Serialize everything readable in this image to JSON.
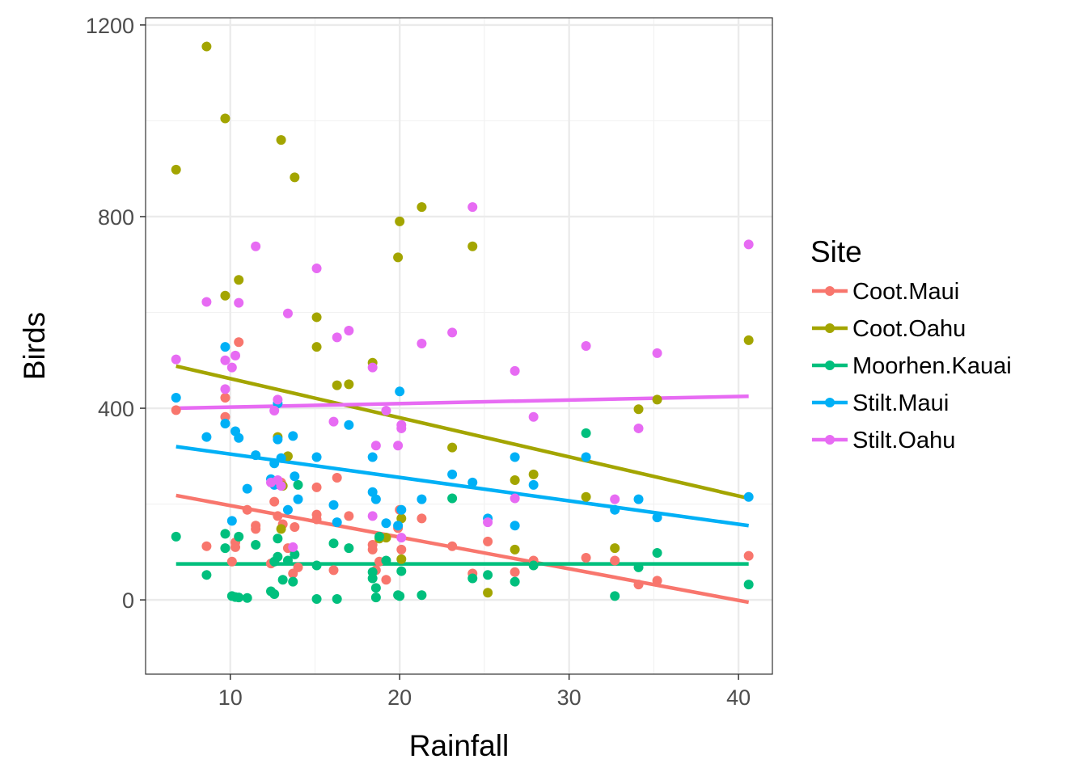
{
  "chart_data": {
    "type": "scatter",
    "xlabel": "Rainfall",
    "ylabel": "Birds",
    "xlim": [
      5.0,
      42.0
    ],
    "ylim": [
      -155,
      1215
    ],
    "x_ticks": [
      10,
      20,
      30,
      40
    ],
    "y_ticks": [
      0,
      400,
      800,
      1200
    ],
    "x_tick_labels": [
      "10",
      "20",
      "30",
      "40"
    ],
    "y_tick_labels": [
      "0",
      "400",
      "800",
      "1200"
    ],
    "grid": true,
    "legend": {
      "title": "Site",
      "position": "right"
    },
    "series": [
      {
        "name": "Coot.Maui",
        "color": "#F8766D",
        "trend": [
          [
            6.8,
            218
          ],
          [
            40.6,
            -5
          ]
        ],
        "points": [
          [
            6.8,
            396
          ],
          [
            8.6,
            112
          ],
          [
            9.7,
            382
          ],
          [
            9.7,
            422
          ],
          [
            10.1,
            80
          ],
          [
            10.3,
            110
          ],
          [
            10.3,
            120
          ],
          [
            10.5,
            538
          ],
          [
            11.0,
            188
          ],
          [
            11.5,
            148
          ],
          [
            11.5,
            155
          ],
          [
            12.4,
            76
          ],
          [
            12.6,
            205
          ],
          [
            12.8,
            175
          ],
          [
            13.0,
            245
          ],
          [
            13.1,
            158
          ],
          [
            13.4,
            108
          ],
          [
            13.7,
            55
          ],
          [
            13.8,
            152
          ],
          [
            14.0,
            68
          ],
          [
            15.1,
            235
          ],
          [
            15.1,
            178
          ],
          [
            15.1,
            168
          ],
          [
            16.1,
            62
          ],
          [
            16.3,
            255
          ],
          [
            17.0,
            175
          ],
          [
            18.4,
            105
          ],
          [
            18.4,
            115
          ],
          [
            18.6,
            62
          ],
          [
            18.8,
            80
          ],
          [
            19.2,
            42
          ],
          [
            19.9,
            150
          ],
          [
            20.0,
            188
          ],
          [
            20.1,
            105
          ],
          [
            21.3,
            170
          ],
          [
            23.1,
            112
          ],
          [
            24.3,
            55
          ],
          [
            25.2,
            122
          ],
          [
            26.8,
            58
          ],
          [
            27.9,
            82
          ],
          [
            31.0,
            88
          ],
          [
            32.7,
            82
          ],
          [
            34.1,
            32
          ],
          [
            35.2,
            40
          ],
          [
            40.6,
            92
          ]
        ]
      },
      {
        "name": "Coot.Oahu",
        "color": "#A3A500",
        "trend": [
          [
            6.8,
            488
          ],
          [
            40.6,
            212
          ]
        ],
        "points": [
          [
            6.8,
            898
          ],
          [
            8.6,
            1155
          ],
          [
            9.7,
            1005
          ],
          [
            9.7,
            635
          ],
          [
            10.5,
            668
          ],
          [
            13.0,
            960
          ],
          [
            13.8,
            882
          ],
          [
            12.8,
            340
          ],
          [
            13.1,
            238
          ],
          [
            13.4,
            300
          ],
          [
            13.0,
            148
          ],
          [
            15.1,
            590
          ],
          [
            15.1,
            528
          ],
          [
            16.3,
            448
          ],
          [
            17.0,
            450
          ],
          [
            18.4,
            495
          ],
          [
            18.8,
            128
          ],
          [
            19.2,
            130
          ],
          [
            19.9,
            715
          ],
          [
            20.0,
            790
          ],
          [
            20.1,
            170
          ],
          [
            20.1,
            85
          ],
          [
            21.3,
            820
          ],
          [
            23.1,
            318
          ],
          [
            24.3,
            738
          ],
          [
            25.2,
            15
          ],
          [
            26.8,
            250
          ],
          [
            26.8,
            105
          ],
          [
            27.9,
            262
          ],
          [
            31.0,
            215
          ],
          [
            32.7,
            108
          ],
          [
            34.1,
            398
          ],
          [
            35.2,
            418
          ],
          [
            40.6,
            542
          ]
        ]
      },
      {
        "name": "Moorhen.Kauai",
        "color": "#00BF7D",
        "trend": [
          [
            6.8,
            75
          ],
          [
            40.6,
            75
          ]
        ],
        "points": [
          [
            6.8,
            132
          ],
          [
            8.6,
            52
          ],
          [
            9.7,
            108
          ],
          [
            9.7,
            138
          ],
          [
            10.1,
            8
          ],
          [
            10.3,
            6
          ],
          [
            10.5,
            5
          ],
          [
            10.5,
            132
          ],
          [
            11.0,
            4
          ],
          [
            11.5,
            115
          ],
          [
            12.4,
            18
          ],
          [
            12.6,
            12
          ],
          [
            12.6,
            80
          ],
          [
            12.8,
            90
          ],
          [
            12.8,
            128
          ],
          [
            13.1,
            42
          ],
          [
            13.4,
            82
          ],
          [
            13.7,
            38
          ],
          [
            13.8,
            95
          ],
          [
            14.0,
            240
          ],
          [
            15.1,
            72
          ],
          [
            15.1,
            2
          ],
          [
            16.1,
            118
          ],
          [
            16.3,
            2
          ],
          [
            17.0,
            108
          ],
          [
            18.4,
            45
          ],
          [
            18.4,
            58
          ],
          [
            18.6,
            25
          ],
          [
            18.6,
            5
          ],
          [
            18.8,
            132
          ],
          [
            19.2,
            82
          ],
          [
            19.9,
            10
          ],
          [
            20.0,
            8
          ],
          [
            20.1,
            60
          ],
          [
            21.3,
            10
          ],
          [
            23.1,
            212
          ],
          [
            24.3,
            45
          ],
          [
            25.2,
            52
          ],
          [
            26.8,
            38
          ],
          [
            27.9,
            72
          ],
          [
            31.0,
            348
          ],
          [
            32.7,
            8
          ],
          [
            34.1,
            68
          ],
          [
            35.2,
            98
          ],
          [
            40.6,
            32
          ]
        ]
      },
      {
        "name": "Stilt.Maui",
        "color": "#00B0F6",
        "trend": [
          [
            6.8,
            320
          ],
          [
            40.6,
            155
          ]
        ],
        "points": [
          [
            6.8,
            422
          ],
          [
            8.6,
            340
          ],
          [
            9.7,
            528
          ],
          [
            9.7,
            368
          ],
          [
            10.1,
            165
          ],
          [
            10.3,
            352
          ],
          [
            10.5,
            338
          ],
          [
            11.0,
            232
          ],
          [
            11.5,
            302
          ],
          [
            12.4,
            252
          ],
          [
            12.6,
            285
          ],
          [
            12.6,
            240
          ],
          [
            12.8,
            410
          ],
          [
            12.8,
            335
          ],
          [
            13.0,
            296
          ],
          [
            13.4,
            188
          ],
          [
            13.7,
            342
          ],
          [
            13.8,
            258
          ],
          [
            14.0,
            210
          ],
          [
            15.1,
            298
          ],
          [
            16.1,
            198
          ],
          [
            16.3,
            162
          ],
          [
            17.0,
            365
          ],
          [
            18.4,
            298
          ],
          [
            18.4,
            225
          ],
          [
            18.6,
            210
          ],
          [
            19.2,
            160
          ],
          [
            19.9,
            155
          ],
          [
            20.0,
            435
          ],
          [
            20.1,
            188
          ],
          [
            21.3,
            210
          ],
          [
            23.1,
            262
          ],
          [
            24.3,
            245
          ],
          [
            25.2,
            170
          ],
          [
            26.8,
            298
          ],
          [
            26.8,
            155
          ],
          [
            27.9,
            240
          ],
          [
            31.0,
            298
          ],
          [
            32.7,
            188
          ],
          [
            34.1,
            210
          ],
          [
            35.2,
            172
          ],
          [
            40.6,
            215
          ]
        ]
      },
      {
        "name": "Stilt.Oahu",
        "color": "#E76BF3",
        "trend": [
          [
            6.8,
            400
          ],
          [
            40.6,
            425
          ]
        ],
        "points": [
          [
            6.8,
            502
          ],
          [
            8.6,
            622
          ],
          [
            9.7,
            500
          ],
          [
            9.7,
            440
          ],
          [
            10.1,
            485
          ],
          [
            10.3,
            510
          ],
          [
            10.5,
            620
          ],
          [
            11.5,
            738
          ],
          [
            12.4,
            245
          ],
          [
            12.6,
            395
          ],
          [
            12.8,
            418
          ],
          [
            12.8,
            250
          ],
          [
            13.0,
            238
          ],
          [
            13.4,
            598
          ],
          [
            13.7,
            110
          ],
          [
            15.1,
            692
          ],
          [
            16.1,
            372
          ],
          [
            16.3,
            548
          ],
          [
            17.0,
            562
          ],
          [
            18.4,
            485
          ],
          [
            18.4,
            175
          ],
          [
            18.6,
            322
          ],
          [
            19.2,
            395
          ],
          [
            19.9,
            322
          ],
          [
            20.1,
            358
          ],
          [
            20.1,
            365
          ],
          [
            20.1,
            130
          ],
          [
            21.3,
            535
          ],
          [
            23.1,
            558
          ],
          [
            24.3,
            820
          ],
          [
            25.2,
            162
          ],
          [
            26.8,
            478
          ],
          [
            26.8,
            212
          ],
          [
            27.9,
            382
          ],
          [
            31.0,
            530
          ],
          [
            32.7,
            210
          ],
          [
            34.1,
            358
          ],
          [
            35.2,
            515
          ],
          [
            40.6,
            742
          ]
        ]
      }
    ]
  }
}
